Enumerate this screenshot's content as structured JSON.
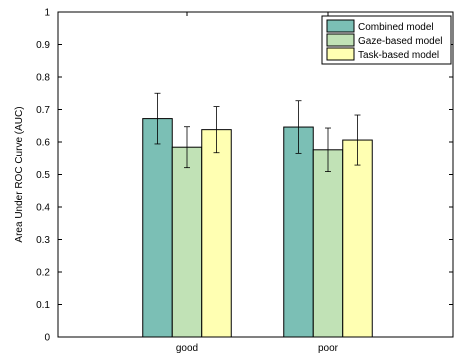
{
  "chart_data": {
    "type": "bar",
    "ylabel": "Area Under ROC Curve (AUC)",
    "xlabel": "",
    "ylim": [
      0,
      1
    ],
    "yticks": [
      "0",
      "0.1",
      "0.2",
      "0.3",
      "0.4",
      "0.5",
      "0.6",
      "0.7",
      "0.8",
      "0.9",
      "1"
    ],
    "categories": [
      "good",
      "poor"
    ],
    "legend_position": "top-right",
    "grid": false,
    "series": [
      {
        "name": "Combined model",
        "color": "#7bbfb5",
        "values": [
          0.672,
          0.646
        ],
        "error": [
          0.078,
          0.081
        ]
      },
      {
        "name": "Gaze-based model",
        "color": "#c1e2b6",
        "values": [
          0.584,
          0.576
        ],
        "error": [
          0.063,
          0.067
        ]
      },
      {
        "name": "Task-based model",
        "color": "#ffffb2",
        "values": [
          0.638,
          0.606
        ],
        "error": [
          0.071,
          0.077
        ]
      }
    ]
  }
}
